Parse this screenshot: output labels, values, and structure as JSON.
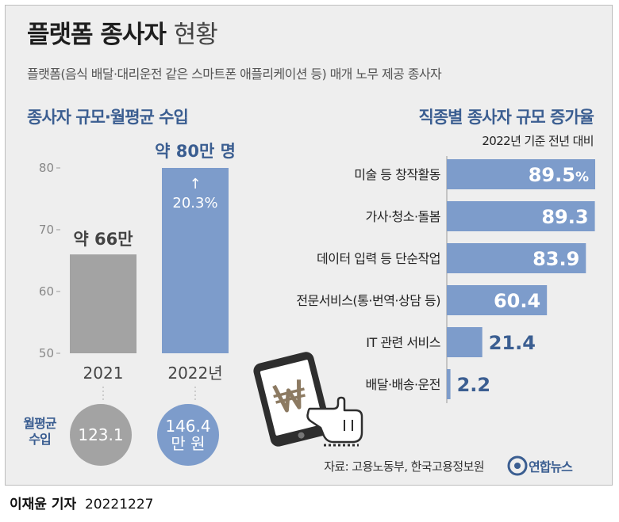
{
  "title_bold": "플랫폼 종사자",
  "title_light": "현황",
  "subtitle": "플랫폼(음식 배달·대리운전 같은 스마트폰 애플리케이션 등) 매개 노무 제공 종사자",
  "left_section_title": "종사자 규모·월평균 수입",
  "right_section_title": "직종별 종사자 규모 증가율",
  "right_basis": "2022년 기준 전년 대비",
  "income_label_line1": "월평균",
  "income_label_line2": "수입",
  "income_2021": "123.1",
  "income_2022_line1": "146.4",
  "income_2022_line2": "만 원",
  "source": "자료: 고용노동부, 한국고용정보원",
  "logo_text": "연합뉴스",
  "byline_name": "이재윤 기자",
  "byline_date": "20221227",
  "chart_data": [
    {
      "type": "bar",
      "categories": [
        "2021",
        "2022년"
      ],
      "values": [
        66,
        80
      ],
      "value_labels": [
        "약 66만",
        "약 80만 명"
      ],
      "annotation": "20.3%",
      "y_ticks": [
        "80",
        "70",
        "60",
        "50"
      ],
      "ylim": [
        50,
        80
      ],
      "colors": [
        "#a3a3a3",
        "#7d9ccb"
      ]
    },
    {
      "type": "bar",
      "orientation": "horizontal",
      "categories": [
        "미술 등 창작활동",
        "가사·청소·돌봄",
        "데이터 입력 등 단순작업",
        "전문서비스(통·번역·상담 등)",
        "IT 관련 서비스",
        "배달·배송·운전"
      ],
      "values": [
        89.5,
        89.3,
        83.9,
        60.4,
        21.4,
        2.2
      ],
      "value_labels": [
        "89.5",
        "89.3",
        "83.9",
        "60.4",
        "21.4",
        "2.2"
      ],
      "first_value_unit": "%",
      "color": "#7d9ccb"
    }
  ]
}
